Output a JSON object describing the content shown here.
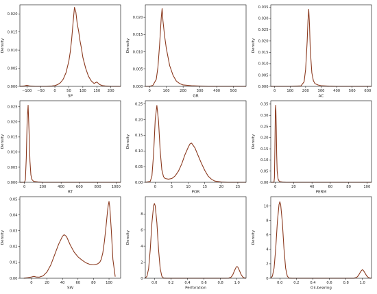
{
  "figure": {
    "line_color": "#8b3a1f",
    "axis_color": "#000000"
  },
  "chart_data": [
    {
      "type": "line",
      "xlabel": "SP",
      "ylabel": "Density",
      "xlim": [
        -125,
        235
      ],
      "ylim": [
        0,
        0.0225
      ],
      "xticks": [
        -100,
        -50,
        0,
        50,
        100,
        150,
        200
      ],
      "xtick_labels": [
        "−100",
        "−50",
        "0",
        "50",
        "100",
        "150",
        "200"
      ],
      "yticks": [
        0,
        0.005,
        0.01,
        0.015,
        0.02
      ],
      "ytick_labels": [
        "0.000",
        "0.005",
        "0.010",
        "0.015",
        "0.020"
      ],
      "series": [
        {
          "x": [
            -125,
            -110,
            -100,
            -90,
            -70,
            -50,
            -30,
            -10,
            0,
            10,
            20,
            30,
            40,
            50,
            55,
            60,
            65,
            70,
            75,
            80,
            85,
            90,
            95,
            100,
            110,
            120,
            130,
            140,
            150,
            160,
            170,
            180,
            200,
            220,
            235
          ],
          "y": [
            0,
            0.0001,
            0.0003,
            0.0001,
            0,
            0,
            0,
            0.0001,
            0.0002,
            0.0005,
            0.001,
            0.002,
            0.0038,
            0.007,
            0.0095,
            0.013,
            0.0175,
            0.0218,
            0.0205,
            0.0172,
            0.0152,
            0.0125,
            0.0105,
            0.008,
            0.005,
            0.0028,
            0.0015,
            0.0008,
            0.0012,
            0.0005,
            0.0002,
            0.0001,
            0,
            0,
            0
          ]
        }
      ]
    },
    {
      "type": "line",
      "xlabel": "GR",
      "ylabel": "Density",
      "xlim": [
        -25,
        575
      ],
      "ylim": [
        0,
        0.0236
      ],
      "xticks": [
        0,
        100,
        200,
        300,
        400,
        500
      ],
      "xtick_labels": [
        "0",
        "100",
        "200",
        "300",
        "400",
        "500"
      ],
      "yticks": [
        0,
        0.005,
        0.01,
        0.015,
        0.02
      ],
      "ytick_labels": [
        "0.000",
        "0.005",
        "0.010",
        "0.015",
        "0.020"
      ],
      "series": [
        {
          "x": [
            -25,
            0,
            20,
            40,
            50,
            60,
            70,
            75,
            80,
            90,
            100,
            110,
            120,
            140,
            160,
            180,
            200,
            250,
            300,
            350,
            400,
            500,
            575
          ],
          "y": [
            0,
            0,
            0.0003,
            0.002,
            0.0055,
            0.012,
            0.02,
            0.0225,
            0.019,
            0.0145,
            0.011,
            0.0085,
            0.006,
            0.0032,
            0.0015,
            0.0008,
            0.0004,
            0.0002,
            0.0001,
            0,
            0,
            0,
            0
          ]
        }
      ]
    },
    {
      "type": "line",
      "xlabel": "AC",
      "ylabel": "Density",
      "xlim": [
        -25,
        625
      ],
      "ylim": [
        0,
        0.036
      ],
      "xticks": [
        0,
        100,
        200,
        300,
        400,
        500,
        600
      ],
      "xtick_labels": [
        "0",
        "100",
        "200",
        "300",
        "400",
        "500",
        "600"
      ],
      "yticks": [
        0,
        0.005,
        0.01,
        0.015,
        0.02,
        0.025,
        0.03,
        0.035
      ],
      "ytick_labels": [
        "0.000",
        "0.005",
        "0.010",
        "0.015",
        "0.020",
        "0.025",
        "0.030",
        "0.035"
      ],
      "series": [
        {
          "x": [
            -25,
            100,
            170,
            190,
            200,
            210,
            215,
            220,
            225,
            230,
            240,
            250,
            260,
            280,
            300,
            350,
            400,
            500,
            625
          ],
          "y": [
            0,
            0,
            0.0002,
            0.002,
            0.0075,
            0.02,
            0.029,
            0.034,
            0.027,
            0.016,
            0.006,
            0.0025,
            0.0012,
            0.0006,
            0.0003,
            0.0001,
            0,
            0,
            0
          ]
        }
      ]
    },
    {
      "type": "line",
      "xlabel": "RT",
      "ylabel": "Density",
      "xlim": [
        -50,
        1050
      ],
      "ylim": [
        0,
        0.027
      ],
      "xticks": [
        0,
        200,
        400,
        600,
        800,
        1000
      ],
      "xtick_labels": [
        "0",
        "200",
        "400",
        "600",
        "800",
        "1000"
      ],
      "yticks": [
        0,
        0.005,
        0.01,
        0.015,
        0.02,
        0.025
      ],
      "ytick_labels": [
        "0.000",
        "0.005",
        "0.010",
        "0.015",
        "0.020",
        "0.025"
      ],
      "series": [
        {
          "x": [
            -50,
            0,
            10,
            20,
            30,
            40,
            50,
            60,
            70,
            80,
            100,
            150,
            200,
            300,
            500,
            700,
            1050
          ],
          "y": [
            0,
            0,
            0.0008,
            0.008,
            0.021,
            0.0255,
            0.017,
            0.007,
            0.0025,
            0.001,
            0.0003,
            0.0001,
            0,
            0,
            0,
            0,
            0
          ]
        }
      ]
    },
    {
      "type": "line",
      "xlabel": "POR",
      "ylabel": "Density",
      "xlim": [
        -3,
        27.5
      ],
      "ylim": [
        0,
        0.26
      ],
      "xticks": [
        0,
        5,
        10,
        15,
        20,
        25
      ],
      "xtick_labels": [
        "0",
        "5",
        "10",
        "15",
        "20",
        "25"
      ],
      "yticks": [
        0,
        0.05,
        0.1,
        0.15,
        0.2,
        0.25
      ],
      "ytick_labels": [
        "0.00",
        "0.05",
        "0.10",
        "0.15",
        "0.20",
        "0.25"
      ],
      "series": [
        {
          "x": [
            -3,
            -1.5,
            -1,
            -0.5,
            0,
            0.5,
            1,
            1.5,
            2,
            2.5,
            3,
            4,
            5,
            6,
            7,
            8,
            9,
            10,
            10.5,
            11,
            12,
            13,
            14,
            15,
            16,
            17,
            18,
            20,
            22,
            25,
            27.5
          ],
          "y": [
            0,
            0.003,
            0.02,
            0.09,
            0.2,
            0.245,
            0.195,
            0.1,
            0.04,
            0.018,
            0.012,
            0.01,
            0.012,
            0.02,
            0.035,
            0.058,
            0.088,
            0.112,
            0.122,
            0.125,
            0.11,
            0.085,
            0.06,
            0.038,
            0.02,
            0.01,
            0.004,
            0.001,
            0,
            0,
            0
          ]
        }
      ]
    },
    {
      "type": "line",
      "xlabel": "PERM",
      "ylabel": "Density",
      "xlim": [
        -5,
        105
      ],
      "ylim": [
        0,
        0.365
      ],
      "xticks": [
        0,
        20,
        40,
        60,
        80,
        100
      ],
      "xtick_labels": [
        "0",
        "20",
        "40",
        "60",
        "80",
        "100"
      ],
      "yticks": [
        0,
        0.05,
        0.1,
        0.15,
        0.2,
        0.25,
        0.3,
        0.35
      ],
      "ytick_labels": [
        "0.00",
        "0.05",
        "0.10",
        "0.15",
        "0.20",
        "0.25",
        "0.30",
        "0.35"
      ],
      "series": [
        {
          "x": [
            -5,
            -1.5,
            -1,
            -0.5,
            0,
            0.5,
            1,
            1.5,
            2,
            3,
            4,
            5,
            8,
            12,
            20,
            40,
            60,
            80,
            100,
            105
          ],
          "y": [
            0,
            0,
            0.02,
            0.15,
            0.32,
            0.345,
            0.25,
            0.12,
            0.05,
            0.015,
            0.006,
            0.003,
            0.001,
            0,
            0,
            0,
            0,
            0,
            0,
            0
          ]
        }
      ]
    },
    {
      "type": "line",
      "xlabel": "SW",
      "ylabel": "Density",
      "xlim": [
        -15,
        115
      ],
      "ylim": [
        0,
        0.0515
      ],
      "xticks": [
        0,
        20,
        40,
        60,
        80,
        100
      ],
      "xtick_labels": [
        "0",
        "20",
        "40",
        "60",
        "80",
        "100"
      ],
      "yticks": [
        0,
        0.01,
        0.02,
        0.03,
        0.04,
        0.05
      ],
      "ytick_labels": [
        "0.00",
        "0.01",
        "0.02",
        "0.03",
        "0.04",
        "0.05"
      ],
      "series": [
        {
          "x": [
            -10,
            -5,
            0,
            3,
            6,
            10,
            15,
            20,
            25,
            30,
            35,
            40,
            42,
            45,
            50,
            55,
            60,
            65,
            70,
            75,
            80,
            85,
            88,
            90,
            92,
            94,
            96,
            98,
            99,
            100,
            101,
            103,
            105,
            108
          ],
          "y": [
            0,
            0.0003,
            0.0008,
            0.0012,
            0.0008,
            0.0007,
            0.0015,
            0.004,
            0.0085,
            0.015,
            0.0215,
            0.0265,
            0.0275,
            0.0265,
            0.021,
            0.0165,
            0.0135,
            0.0115,
            0.0098,
            0.0088,
            0.0085,
            0.009,
            0.01,
            0.012,
            0.016,
            0.023,
            0.032,
            0.042,
            0.046,
            0.0485,
            0.045,
            0.03,
            0.012,
            0.001
          ]
        }
      ]
    },
    {
      "type": "line",
      "xlabel": "Perforation",
      "ylabel": "Density",
      "xlim": [
        -0.11,
        1.11
      ],
      "ylim": [
        0,
        10.15
      ],
      "xticks": [
        0,
        0.2,
        0.4,
        0.6,
        0.8,
        1
      ],
      "xtick_labels": [
        "0.0",
        "0.2",
        "0.4",
        "0.6",
        "0.8",
        "1.0"
      ],
      "yticks": [
        0,
        2,
        4,
        6,
        8
      ],
      "ytick_labels": [
        "0",
        "2",
        "4",
        "6",
        "8"
      ],
      "series": [
        {
          "x": [
            -0.11,
            -0.09,
            -0.07,
            -0.05,
            -0.03,
            -0.01,
            0,
            0.01,
            0.03,
            0.05,
            0.07,
            0.09,
            0.11,
            0.15,
            0.2,
            0.5,
            0.85,
            0.9,
            0.93,
            0.95,
            0.97,
            0.99,
            1,
            1.01,
            1.03,
            1.05,
            1.07,
            1.09,
            1.11
          ],
          "y": [
            0.02,
            0.25,
            1.2,
            3.6,
            6.9,
            9.0,
            9.3,
            9.0,
            6.9,
            3.6,
            1.2,
            0.25,
            0.02,
            0,
            0,
            0,
            0,
            0.01,
            0.15,
            0.45,
            0.95,
            1.38,
            1.45,
            1.38,
            0.95,
            0.45,
            0.15,
            0.03,
            0.01
          ]
        }
      ]
    },
    {
      "type": "line",
      "xlabel": "Oil-bearing",
      "ylabel": "Density",
      "xlim": [
        -0.11,
        1.11
      ],
      "ylim": [
        0,
        11.3
      ],
      "xticks": [
        0,
        0.2,
        0.4,
        0.6,
        0.8,
        1
      ],
      "xtick_labels": [
        "0.0",
        "0.2",
        "0.4",
        "0.6",
        "0.8",
        "1.0"
      ],
      "yticks": [
        0,
        2,
        4,
        6,
        8,
        10
      ],
      "ytick_labels": [
        "0",
        "2",
        "4",
        "6",
        "8",
        "10"
      ],
      "series": [
        {
          "x": [
            -0.11,
            -0.09,
            -0.07,
            -0.05,
            -0.03,
            -0.01,
            0,
            0.01,
            0.03,
            0.05,
            0.07,
            0.09,
            0.11,
            0.15,
            0.2,
            0.5,
            0.85,
            0.9,
            0.93,
            0.95,
            0.97,
            0.99,
            1,
            1.01,
            1.03,
            1.05,
            1.07,
            1.09,
            1.11
          ],
          "y": [
            0.02,
            0.3,
            1.4,
            4.1,
            7.8,
            10.2,
            10.6,
            10.2,
            7.8,
            4.1,
            1.4,
            0.3,
            0.02,
            0,
            0,
            0,
            0,
            0.01,
            0.12,
            0.35,
            0.75,
            1.1,
            1.18,
            1.1,
            0.75,
            0.35,
            0.12,
            0.02,
            0.01
          ]
        }
      ]
    }
  ]
}
